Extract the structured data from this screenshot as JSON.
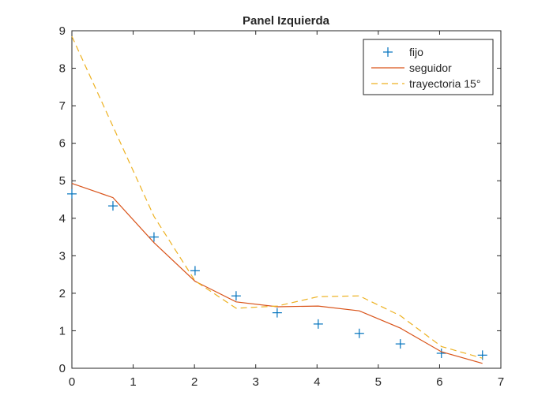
{
  "chart_data": {
    "type": "line",
    "title": "Panel Izquierda",
    "xlabel": "",
    "ylabel": "",
    "xlim": [
      0,
      7
    ],
    "ylim": [
      0,
      9
    ],
    "xticks": [
      "0",
      "1",
      "2",
      "3",
      "4",
      "5",
      "6",
      "7"
    ],
    "yticks": [
      "0",
      "1",
      "2",
      "3",
      "4",
      "5",
      "6",
      "7",
      "8",
      "9"
    ],
    "grid": false,
    "legend_position": "top-right",
    "series": [
      {
        "name": "fijo",
        "style": "markers-plus",
        "color": "#0072BD",
        "x": [
          0,
          0.67,
          1.34,
          2.01,
          2.68,
          3.35,
          4.02,
          4.69,
          5.36,
          6.03,
          6.7
        ],
        "y": [
          4.65,
          4.33,
          3.5,
          2.6,
          1.93,
          1.48,
          1.18,
          0.93,
          0.65,
          0.4,
          0.35
        ]
      },
      {
        "name": "seguidor",
        "style": "solid",
        "color": "#D95319",
        "x": [
          0,
          0.67,
          1.34,
          2.01,
          2.68,
          3.35,
          4.02,
          4.69,
          5.36,
          6.03,
          6.7
        ],
        "y": [
          4.93,
          4.55,
          3.35,
          2.32,
          1.77,
          1.64,
          1.66,
          1.53,
          1.07,
          0.44,
          0.13
        ]
      },
      {
        "name": "trayectoria 15°",
        "style": "dashed",
        "color": "#EDB120",
        "x": [
          0,
          0.67,
          1.34,
          2.01,
          2.68,
          3.35,
          4.02,
          4.69,
          5.36,
          6.03,
          6.7
        ],
        "y": [
          8.85,
          6.45,
          4.05,
          2.33,
          1.6,
          1.66,
          1.91,
          1.93,
          1.4,
          0.58,
          0.27
        ]
      }
    ]
  }
}
